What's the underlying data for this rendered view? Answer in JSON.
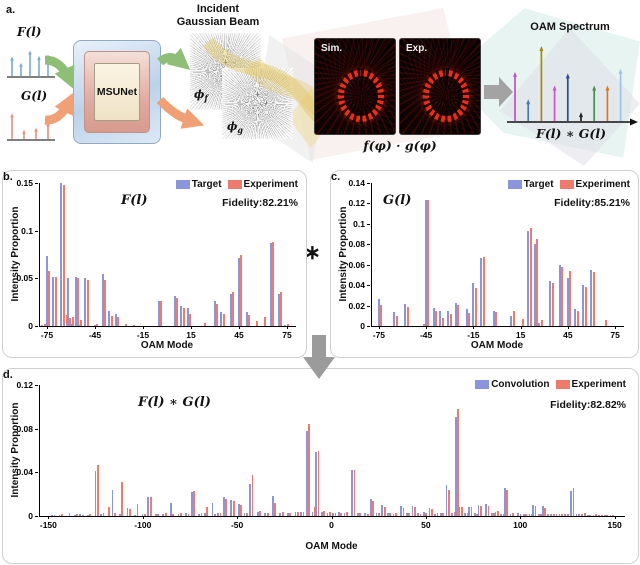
{
  "colors": {
    "target": "#8b95d9",
    "experiment": "#ee7c6e",
    "axis": "#111111",
    "panel_border": "#cfcfcf",
    "green_arrow": "#8fbe76",
    "orange_arrow": "#f0a075",
    "gray_arrow": "#a3a3a3",
    "f_inset_stem": "#7aa9d8",
    "g_inset_stem": "#e8907b",
    "beam_yellow": "#e2c258"
  },
  "panel_a": {
    "label": "a.",
    "f_label": "F(l)",
    "g_label": "G(l)",
    "f_inset_stems": [
      0.6,
      0.42,
      0.78,
      0.62,
      0.66
    ],
    "g_inset_stems": [
      0.78,
      0.3,
      0.36,
      0.52
    ],
    "msunet": "MSUNet",
    "incident_line1": "Incident",
    "incident_line2": "Gaussian Beam",
    "phi_f": {
      "base": "ϕ",
      "sub": "f"
    },
    "phi_g": {
      "base": "ϕ",
      "sub": "g"
    },
    "sim": "Sim.",
    "exp": "Exp.",
    "product": "f(φ) · g(φ)",
    "oam_title": "OAM Spectrum",
    "conv_formula": "F(l) ∗ G(l)",
    "oam_stems": [
      {
        "h": 0.66,
        "c": "#c050c8"
      },
      {
        "h": 0.3,
        "c": "#4878b0"
      },
      {
        "h": 1.0,
        "c": "#a8860b"
      },
      {
        "h": 0.48,
        "c": "#cc55cc"
      },
      {
        "h": 0.64,
        "c": "#2b4e8c"
      },
      {
        "h": 0.13,
        "c": "#222222"
      },
      {
        "h": 0.48,
        "c": "#4a9048"
      },
      {
        "h": 0.48,
        "c": "#e07820"
      },
      {
        "h": 0.7,
        "c": "#9cc3e8"
      }
    ]
  },
  "asterisk": "∗",
  "chart_data": [
    {
      "panel": "b",
      "panel_label": "b.",
      "type": "stem-pairs",
      "title": "F(l)",
      "xlabel": "OAM Mode",
      "ylabel": "Intensity Proportion",
      "legend": [
        "Target",
        "Experiment"
      ],
      "fidelity": "Fidelity:82.21%",
      "xlim": [
        -80,
        80
      ],
      "ylim": [
        0,
        0.15
      ],
      "xticks": [
        -75,
        -45,
        -15,
        15,
        45,
        75
      ],
      "yticks": [
        0,
        0.05,
        0.1,
        0.15
      ],
      "points": [
        [
          -78,
          0.001,
          0.002
        ],
        [
          -75,
          0.073,
          0.058
        ],
        [
          -71,
          0.051,
          0.051
        ],
        [
          -66,
          0.15,
          0.148
        ],
        [
          -64,
          0.003,
          0.012
        ],
        [
          -62,
          0.05,
          0.008
        ],
        [
          -60,
          0.002,
          0.01
        ],
        [
          -57,
          0.051,
          0.05
        ],
        [
          -55,
          0.001,
          0.006
        ],
        [
          -51,
          0.05,
          0.048
        ],
        [
          -45,
          0.001,
          0.002
        ],
        [
          -40,
          0.055,
          0.048
        ],
        [
          -36,
          0.016,
          0.011
        ],
        [
          -32,
          0.013,
          0.009
        ],
        [
          -27,
          0,
          0.002
        ],
        [
          -22,
          0,
          0.001
        ],
        [
          -5,
          0.026,
          0.026
        ],
        [
          5,
          0.031,
          0.029
        ],
        [
          9,
          0.021,
          0.019
        ],
        [
          13,
          0.019,
          0.013
        ],
        [
          22,
          0,
          0.003
        ],
        [
          30,
          0.026,
          0.023
        ],
        [
          34,
          0.015,
          0.013
        ],
        [
          40,
          0.034,
          0.036
        ],
        [
          45,
          0.071,
          0.075
        ],
        [
          50,
          0.015,
          0.012
        ],
        [
          55,
          0,
          0.005
        ],
        [
          60,
          0,
          0.009
        ],
        [
          65,
          0.087,
          0.088
        ],
        [
          70,
          0.034,
          0.036
        ],
        [
          74,
          0.001,
          0.002
        ]
      ]
    },
    {
      "panel": "c",
      "panel_label": "c.",
      "type": "stem-pairs",
      "title": "G(l)",
      "xlabel": "OAM Mode",
      "ylabel": "Intensity Proportion",
      "legend": [
        "Target",
        "Experiment"
      ],
      "fidelity": "Fidelity:85.21%",
      "xlim": [
        -80,
        80
      ],
      "ylim": [
        0,
        0.14
      ],
      "xticks": [
        -75,
        -45,
        -15,
        15,
        45,
        75
      ],
      "yticks": [
        0,
        0.02,
        0.04,
        0.06,
        0.08,
        0.1,
        0.12,
        0.14
      ],
      "points": [
        [
          -75,
          0.026,
          0.021
        ],
        [
          -65,
          0.014,
          0.01
        ],
        [
          -58,
          0.022,
          0.019
        ],
        [
          -48,
          0,
          0.002
        ],
        [
          -45,
          0.123,
          0.123
        ],
        [
          -40,
          0.018,
          0.015
        ],
        [
          -36,
          0.015,
          0.008
        ],
        [
          -31,
          0.015,
          0.012
        ],
        [
          -26,
          0.023,
          0.021
        ],
        [
          -19,
          0.017,
          0.013
        ],
        [
          -15,
          0.042,
          0.037
        ],
        [
          -10,
          0.067,
          0.068
        ],
        [
          -2,
          0.015,
          0.014
        ],
        [
          9,
          0.01,
          0.015
        ],
        [
          15,
          0,
          0.007
        ],
        [
          20,
          0.093,
          0.096
        ],
        [
          24,
          0.08,
          0.085
        ],
        [
          27,
          0.003,
          0.006
        ],
        [
          34,
          0.044,
          0.042
        ],
        [
          40,
          0.06,
          0.058
        ],
        [
          45,
          0.047,
          0.054
        ],
        [
          50,
          0.017,
          0.015
        ],
        [
          55,
          0.04,
          0.038
        ],
        [
          60,
          0.055,
          0.053
        ],
        [
          68,
          0,
          0.006
        ]
      ]
    },
    {
      "panel": "d",
      "panel_label": "d.",
      "type": "stem-pairs",
      "title": "F(l) ∗ G(l)",
      "xlabel": "OAM Mode",
      "ylabel": "Intensity Proportion",
      "legend": [
        "Convolution",
        "Experiment"
      ],
      "fidelity": "Fidelity:82.82%",
      "xlim": [
        -155,
        155
      ],
      "ylim": [
        0,
        0.12
      ],
      "xticks": [
        -150,
        -100,
        -50,
        0,
        50,
        100,
        150
      ],
      "yticks": [
        0,
        0.04,
        0.08,
        0.12
      ],
      "points": [
        [
          -148,
          0.001,
          0.001
        ],
        [
          -144,
          0.001,
          0.002
        ],
        [
          -140,
          0,
          0.003
        ],
        [
          -136,
          0.001,
          0.002
        ],
        [
          -133,
          0.002,
          0.001
        ],
        [
          -129,
          0.001,
          0.002
        ],
        [
          -125,
          0.041,
          0.047
        ],
        [
          -122,
          0.002,
          0.003
        ],
        [
          -119,
          0,
          0.008
        ],
        [
          -116,
          0.024,
          0.003
        ],
        [
          -112,
          0.002,
          0.031
        ],
        [
          -108,
          0.007,
          0.006
        ],
        [
          -104,
          0.001,
          0.011
        ],
        [
          -100,
          0.002,
          0.002
        ],
        [
          -97,
          0.017,
          0.017
        ],
        [
          -93,
          0.002,
          0.002
        ],
        [
          -89,
          0.002,
          0.003
        ],
        [
          -85,
          0.012,
          0.002
        ],
        [
          -81,
          0.002,
          0.003
        ],
        [
          -77,
          0.003,
          0.002
        ],
        [
          -74,
          0.022,
          0.023
        ],
        [
          -70,
          0.002,
          0.003
        ],
        [
          -67,
          0.003,
          0.008
        ],
        [
          -63,
          0.012,
          0.002
        ],
        [
          -60,
          0.003,
          0.003
        ],
        [
          -57,
          0.017,
          0.016
        ],
        [
          -53,
          0.015,
          0.014
        ],
        [
          -49,
          0.011,
          0.01
        ],
        [
          -46,
          0.003,
          0.003
        ],
        [
          -43,
          0.029,
          0.038
        ],
        [
          -39,
          0.004,
          0.005
        ],
        [
          -35,
          0.003,
          0.003
        ],
        [
          -31,
          0.018,
          0.012
        ],
        [
          -27,
          0.003,
          0.004
        ],
        [
          -23,
          0.003,
          0.003
        ],
        [
          -19,
          0.004,
          0.004
        ],
        [
          -16,
          0.004,
          0.004
        ],
        [
          -13,
          0.078,
          0.084
        ],
        [
          -10,
          0.004,
          0.008
        ],
        [
          -8,
          0.059,
          0.06
        ],
        [
          -5,
          0.004,
          0.005
        ],
        [
          -2,
          0.003,
          0.004
        ],
        [
          1,
          0.003,
          0.003
        ],
        [
          4,
          0.004,
          0.003
        ],
        [
          7,
          0.003,
          0.004
        ],
        [
          11,
          0.042,
          0.042
        ],
        [
          14,
          0.003,
          0.003
        ],
        [
          18,
          0.003,
          0.002
        ],
        [
          21,
          0.016,
          0.014
        ],
        [
          24,
          0.003,
          0.003
        ],
        [
          27,
          0.01,
          0.008
        ],
        [
          30,
          0.003,
          0.003
        ],
        [
          33,
          0.002,
          0.003
        ],
        [
          37,
          0.009,
          0.007
        ],
        [
          40,
          0.003,
          0.003
        ],
        [
          43,
          0.009,
          0.008
        ],
        [
          46,
          0.003,
          0.002
        ],
        [
          49,
          0.004,
          0.003
        ],
        [
          52,
          0.007,
          0.006
        ],
        [
          55,
          0.002,
          0.003
        ],
        [
          58,
          0.003,
          0.003
        ],
        [
          61,
          0.028,
          0.024
        ],
        [
          64,
          0.003,
          0.004
        ],
        [
          66,
          0.091,
          0.098
        ],
        [
          68,
          0.008,
          0.008
        ],
        [
          71,
          0.003,
          0.003
        ],
        [
          73,
          0.008,
          0.008
        ],
        [
          76,
          0.003,
          0.002
        ],
        [
          78,
          0.01,
          0.009
        ],
        [
          82,
          0.011,
          0.009
        ],
        [
          85,
          0.003,
          0.003
        ],
        [
          87,
          0.004,
          0.005
        ],
        [
          90,
          0.002,
          0.002
        ],
        [
          92,
          0.026,
          0.024
        ],
        [
          95,
          0.002,
          0.003
        ],
        [
          99,
          0.003,
          0.002
        ],
        [
          102,
          0.002,
          0.002
        ],
        [
          105,
          0.002,
          0.002
        ],
        [
          107,
          0.01,
          0.009
        ],
        [
          110,
          0.002,
          0.002
        ],
        [
          112,
          0.009,
          0.007
        ],
        [
          115,
          0.002,
          0.002
        ],
        [
          118,
          0.002,
          0.002
        ],
        [
          121,
          0.002,
          0.002
        ],
        [
          124,
          0.002,
          0.002
        ],
        [
          127,
          0.023,
          0.026
        ],
        [
          130,
          0.002,
          0.002
        ],
        [
          133,
          0.002,
          0.003
        ],
        [
          136,
          0.001,
          0.001
        ],
        [
          139,
          0.001,
          0.002
        ],
        [
          142,
          0.001,
          0.001
        ],
        [
          145,
          0.001,
          0.001
        ],
        [
          148,
          0.001,
          0.001
        ]
      ]
    }
  ]
}
